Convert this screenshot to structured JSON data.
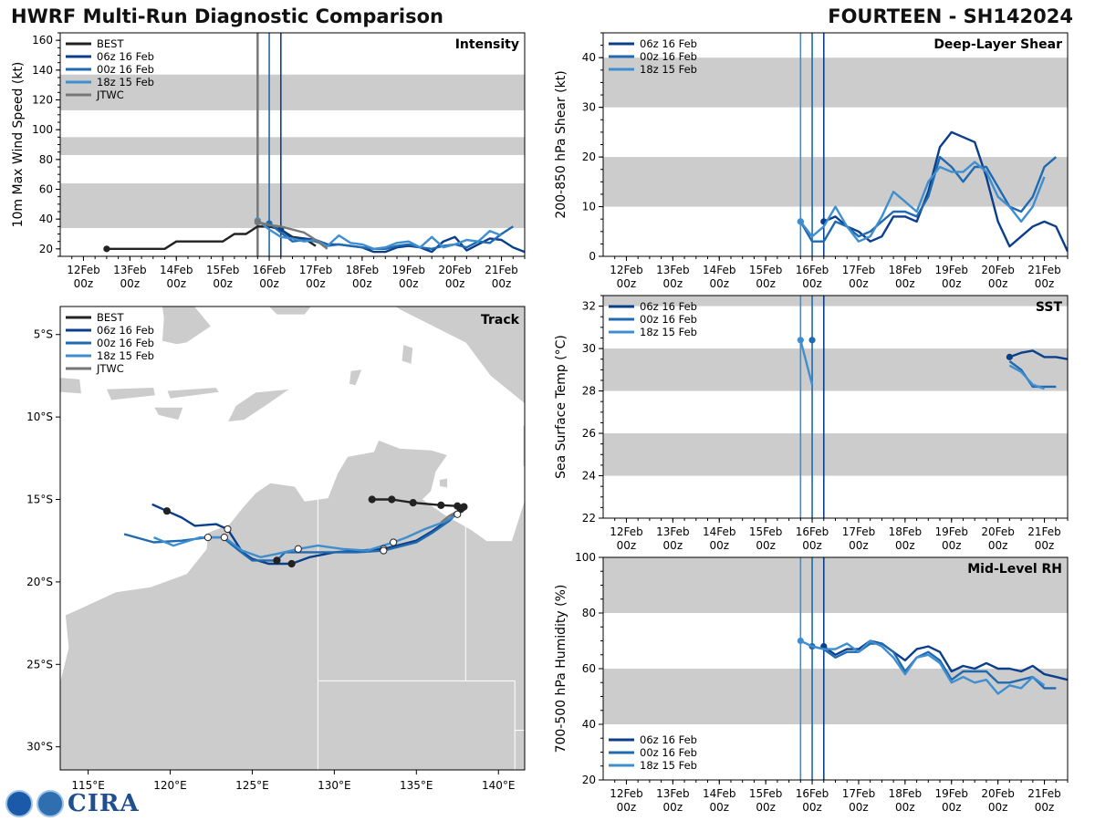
{
  "header": {
    "title_left": "HWRF Multi-Run Diagnostic Comparison",
    "title_right": "FOURTEEN - SH142024"
  },
  "logo": {
    "text": "CIRA"
  },
  "colors": {
    "best": "#222222",
    "run06": "#0b3f8c",
    "run00": "#1f6ab0",
    "run18": "#3f8fd0",
    "jtwc": "#777777",
    "band": "#cccccc",
    "land": "#cccccc",
    "ocean": "#ffffff"
  },
  "time_axis": {
    "tick_day": [
      12,
      13,
      14,
      15,
      16,
      17,
      18,
      19,
      20,
      21
    ],
    "tick_labels": [
      "12Feb",
      "13Feb",
      "14Feb",
      "15Feb",
      "16Feb",
      "17Feb",
      "18Feb",
      "19Feb",
      "20Feb",
      "21Feb"
    ],
    "tick_sub": "00z",
    "xlim": [
      11.5,
      21.5
    ]
  },
  "chart_data": [
    {
      "id": "intensity",
      "type": "line",
      "title": "Intensity",
      "ylabel": "10m Max Wind Speed (kt)",
      "ylim": [
        15,
        165
      ],
      "yticks": [
        20,
        40,
        60,
        80,
        100,
        120,
        140,
        160
      ],
      "bands": [
        [
          34,
          64
        ],
        [
          83,
          95
        ],
        [
          113,
          137
        ]
      ],
      "vlines": [
        {
          "x": 15.75,
          "series": "run18"
        },
        {
          "x": 16.0,
          "series": "run00"
        },
        {
          "x": 16.25,
          "series": "run06"
        },
        {
          "x": 15.75,
          "series": "jtwc"
        }
      ],
      "legend": [
        "BEST",
        "06z 16 Feb",
        "00z 16 Feb",
        "18z 15 Feb",
        "JTWC"
      ],
      "series": [
        {
          "name": "BEST",
          "key": "best",
          "x": [
            12.5,
            12.75,
            13,
            13.25,
            13.5,
            13.75,
            14,
            14.25,
            14.5,
            14.75,
            15,
            15.25,
            15.5,
            15.75,
            16,
            16.25,
            16.5,
            16.75,
            17
          ],
          "y": [
            20,
            20,
            20,
            20,
            20,
            20,
            25,
            25,
            25,
            25,
            25,
            30,
            30,
            35,
            35,
            33,
            28,
            27,
            22
          ]
        },
        {
          "name": "06z 16 Feb",
          "key": "run06",
          "x": [
            16.25,
            16.5,
            16.75,
            17,
            17.25,
            17.5,
            17.75,
            18,
            18.25,
            18.5,
            18.75,
            19,
            19.25,
            19.5,
            19.75,
            20,
            20.25,
            20.5,
            20.75,
            21,
            21.25,
            21.5
          ],
          "y": [
            33,
            27,
            27,
            26,
            23,
            23,
            22,
            21,
            18,
            18,
            21,
            22,
            21,
            18,
            25,
            28,
            19,
            23,
            27,
            26,
            21,
            18
          ]
        },
        {
          "name": "00z 16 Feb",
          "key": "run00",
          "x": [
            16,
            16.25,
            16.5,
            16.75,
            17,
            17.25,
            17.5,
            17.75,
            18,
            18.25,
            18.5,
            18.75,
            19,
            19.25,
            19.5,
            19.75,
            20,
            20.25,
            20.5,
            20.75,
            21,
            21.25
          ],
          "y": [
            37,
            31,
            25,
            26,
            25,
            22,
            23,
            22,
            21,
            20,
            20,
            22,
            23,
            21,
            20,
            22,
            23,
            21,
            25,
            24,
            30,
            35
          ]
        },
        {
          "name": "18z 15 Feb",
          "key": "run18",
          "x": [
            15.75,
            16,
            16.25,
            16.5,
            16.75,
            17,
            17.25,
            17.5,
            17.75,
            18,
            18.25,
            18.5,
            18.75,
            19,
            19.25,
            19.5,
            19.75,
            20,
            20.25,
            20.5,
            20.75,
            21
          ],
          "y": [
            39,
            33,
            28,
            27,
            25,
            26,
            22,
            29,
            24,
            23,
            20,
            21,
            24,
            25,
            21,
            28,
            21,
            23,
            26,
            25,
            32,
            29
          ]
        },
        {
          "name": "JTWC",
          "key": "jtwc",
          "x": [
            15.75,
            16,
            16.25,
            16.5,
            16.75,
            17,
            17.25
          ],
          "y": [
            38,
            36,
            35,
            33,
            31,
            26,
            20
          ]
        }
      ]
    },
    {
      "id": "shear",
      "type": "line",
      "title": "Deep-Layer Shear",
      "ylabel": "200-850 hPa Shear (kt)",
      "ylim": [
        0,
        45
      ],
      "yticks": [
        0,
        10,
        20,
        30,
        40
      ],
      "bands": [
        [
          10,
          20
        ],
        [
          30,
          40
        ]
      ],
      "vlines": [
        {
          "x": 15.75,
          "series": "run18"
        },
        {
          "x": 16.0,
          "series": "run00"
        },
        {
          "x": 16.25,
          "series": "run06"
        }
      ],
      "legend": [
        "06z 16 Feb",
        "00z 16 Feb",
        "18z 15 Feb"
      ],
      "series": [
        {
          "name": "06z 16 Feb",
          "key": "run06",
          "x": [
            16.25,
            16.5,
            16.75,
            17,
            17.25,
            17.5,
            17.75,
            18,
            18.25,
            18.5,
            18.75,
            19,
            19.25,
            19.5,
            19.75,
            20,
            20.25,
            20.5,
            20.75,
            21,
            21.25,
            21.5
          ],
          "y": [
            7,
            8,
            6,
            5,
            3,
            4,
            8,
            8,
            7,
            13,
            22,
            25,
            24,
            23,
            16,
            7,
            2,
            4,
            6,
            7,
            6,
            1
          ]
        },
        {
          "name": "00z 16 Feb",
          "key": "run00",
          "x": [
            15.75,
            16,
            16.25,
            16.5,
            16.75,
            17,
            17.25,
            17.5,
            17.75,
            18,
            18.25,
            18.5,
            18.75,
            19,
            19.25,
            19.5,
            19.75,
            20,
            20.25,
            20.5,
            20.75,
            21,
            21.25
          ],
          "y": [
            7,
            3,
            3,
            7,
            6,
            4,
            5,
            7,
            9,
            9,
            8,
            12,
            20,
            18,
            15,
            18,
            18,
            14,
            10,
            9,
            12,
            18,
            20
          ]
        },
        {
          "name": "18z 15 Feb",
          "key": "run18",
          "x": [
            15.75,
            16,
            16.25,
            16.5,
            16.75,
            17,
            17.25,
            17.5,
            17.75,
            18,
            18.25,
            18.5,
            18.75,
            19,
            19.25,
            19.5,
            19.75,
            20,
            20.25,
            20.5,
            20.75,
            21
          ],
          "y": [
            7,
            4,
            6,
            10,
            6,
            3,
            4,
            8,
            13,
            11,
            9,
            15,
            18,
            17,
            17,
            19,
            17,
            12,
            10,
            7,
            10,
            16
          ]
        }
      ]
    },
    {
      "id": "sst",
      "type": "line",
      "title": "SST",
      "ylabel": "Sea Surface Temp (°C)",
      "ylim": [
        22,
        32.5
      ],
      "yticks": [
        22,
        24,
        26,
        28,
        30,
        32
      ],
      "bands": [
        [
          24,
          26
        ],
        [
          28,
          30
        ],
        [
          32,
          34
        ]
      ],
      "vlines": [
        {
          "x": 15.75,
          "series": "run18"
        },
        {
          "x": 16.0,
          "series": "run00"
        },
        {
          "x": 16.25,
          "series": "run06"
        }
      ],
      "legend": [
        "06z 16 Feb",
        "00z 16 Feb",
        "18z 15 Feb"
      ],
      "series": [
        {
          "name": "06z 16 Feb",
          "key": "run06",
          "segments": [
            {
              "x": [
                20.25,
                20.5,
                20.75,
                21,
                21.25,
                21.5
              ],
              "y": [
                29.6,
                29.8,
                29.9,
                29.6,
                29.6,
                29.5
              ]
            }
          ]
        },
        {
          "name": "00z 16 Feb",
          "key": "run00",
          "segments": [
            {
              "x": [
                16.0
              ],
              "y": [
                30.4
              ]
            },
            {
              "x": [
                20.25,
                20.5,
                20.75,
                21,
                21.25
              ],
              "y": [
                29.4,
                29.0,
                28.2,
                28.2,
                28.2
              ]
            }
          ]
        },
        {
          "name": "18z 15 Feb",
          "key": "run18",
          "segments": [
            {
              "x": [
                15.75,
                16.0
              ],
              "y": [
                30.4,
                28.3
              ]
            },
            {
              "x": [
                20.25,
                20.5,
                20.75,
                21
              ],
              "y": [
                29.2,
                28.9,
                28.3,
                28.1
              ]
            }
          ]
        }
      ]
    },
    {
      "id": "rh",
      "type": "line",
      "title": "Mid-Level RH",
      "ylabel": "700-500 hPa Humidity (%)",
      "ylim": [
        20,
        100
      ],
      "yticks": [
        20,
        40,
        60,
        80,
        100
      ],
      "bands": [
        [
          40,
          60
        ],
        [
          80,
          100
        ]
      ],
      "vlines": [
        {
          "x": 15.75,
          "series": "run18"
        },
        {
          "x": 16.0,
          "series": "run00"
        },
        {
          "x": 16.25,
          "series": "run06"
        }
      ],
      "legend": [
        "06z 16 Feb",
        "00z 16 Feb",
        "18z 15 Feb"
      ],
      "series": [
        {
          "name": "06z 16 Feb",
          "key": "run06",
          "x": [
            16.25,
            16.5,
            16.75,
            17,
            17.25,
            17.5,
            17.75,
            18,
            18.25,
            18.5,
            18.75,
            19,
            19.25,
            19.5,
            19.75,
            20,
            20.25,
            20.5,
            20.75,
            21,
            21.25,
            21.5
          ],
          "y": [
            68,
            65,
            67,
            67,
            70,
            69,
            66,
            63,
            67,
            68,
            66,
            59,
            61,
            60,
            62,
            60,
            60,
            59,
            61,
            58,
            57,
            56
          ]
        },
        {
          "name": "00z 16 Feb",
          "key": "run00",
          "x": [
            16,
            16.25,
            16.5,
            16.75,
            17,
            17.25,
            17.5,
            17.75,
            18,
            18.25,
            18.5,
            18.75,
            19,
            19.25,
            19.5,
            19.75,
            20,
            20.25,
            20.5,
            20.75,
            21,
            21.25
          ],
          "y": [
            68,
            67,
            64,
            66,
            66,
            69,
            69,
            66,
            59,
            64,
            66,
            63,
            56,
            59,
            59,
            59,
            55,
            55,
            56,
            57,
            53,
            53
          ]
        },
        {
          "name": "18z 15 Feb",
          "key": "run18",
          "x": [
            15.75,
            16,
            16.25,
            16.5,
            16.75,
            17,
            17.25,
            17.5,
            17.75,
            18,
            18.25,
            18.5,
            18.75,
            19,
            19.25,
            19.5,
            19.75,
            20,
            20.25,
            20.5,
            20.75,
            21
          ],
          "y": [
            70,
            68,
            67,
            67,
            69,
            66,
            70,
            68,
            64,
            58,
            64,
            65,
            62,
            55,
            57,
            55,
            56,
            51,
            54,
            53,
            57,
            54
          ]
        }
      ]
    },
    {
      "id": "track",
      "type": "scatter",
      "title": "Track",
      "xlim": [
        113.3,
        141.6
      ],
      "ylim": [
        -31.4,
        -3.3
      ],
      "xticks": [
        115,
        120,
        125,
        130,
        135,
        140
      ],
      "xtick_labels": [
        "115°E",
        "120°E",
        "125°E",
        "130°E",
        "135°E",
        "140°E"
      ],
      "yticks": [
        -5,
        -10,
        -15,
        -20,
        -25,
        -30
      ],
      "ytick_labels": [
        "5°S",
        "10°S",
        "15°S",
        "20°S",
        "25°S",
        "30°S"
      ],
      "legend": [
        "BEST",
        "06z 16 Feb",
        "00z 16 Feb",
        "18z 15 Feb",
        "JTWC"
      ],
      "series": [
        {
          "name": "BEST",
          "key": "best",
          "lon": [
            132.3,
            133.5,
            134.8,
            136.5,
            137.5,
            137.9
          ],
          "lat": [
            -15.0,
            -15.0,
            -15.2,
            -15.35,
            -15.4,
            -15.45
          ],
          "marker": "filled"
        },
        {
          "name": "06z 16 Feb",
          "key": "run06",
          "lon": [
            137.8,
            137.0,
            136.0,
            135.0,
            133.0,
            131.5,
            130.0,
            128.5,
            127.4,
            126.0,
            125.0,
            124.4,
            123.5,
            122.8,
            121.5,
            120.7,
            119.8,
            118.9
          ],
          "lat": [
            -15.5,
            -16.2,
            -16.9,
            -17.5,
            -18.0,
            -18.1,
            -18.2,
            -18.5,
            -18.9,
            -18.9,
            -18.6,
            -18.2,
            -16.8,
            -16.5,
            -16.6,
            -16.1,
            -15.7,
            -15.3
          ],
          "marker": "filled"
        },
        {
          "name": "00z 16 Feb",
          "key": "run00",
          "lon": [
            137.7,
            137.0,
            136.0,
            135.0,
            133.0,
            131.4,
            129.0,
            127.0,
            126.5,
            125.0,
            124.2,
            123.2,
            122.3,
            120.7,
            119.0,
            117.2
          ],
          "lat": [
            -15.6,
            -16.3,
            -17.0,
            -17.6,
            -18.1,
            -18.2,
            -18.2,
            -18.2,
            -18.7,
            -18.7,
            -18.1,
            -17.3,
            -17.3,
            -17.5,
            -17.6,
            -17.1
          ],
          "marker": "filled"
        },
        {
          "name": "18z 15 Feb",
          "key": "run18",
          "lon": [
            137.5,
            136.6,
            135.5,
            134.4,
            133.6,
            132.0,
            130.5,
            129.0,
            127.8,
            126.5,
            125.5,
            124.4,
            123.3,
            121.8,
            120.2,
            119.0
          ],
          "lat": [
            -15.9,
            -16.4,
            -16.8,
            -17.3,
            -17.6,
            -18.1,
            -18.0,
            -17.8,
            -18.0,
            -18.3,
            -18.5,
            -18.1,
            -17.3,
            -17.3,
            -17.8,
            -17.3
          ],
          "marker": "open"
        },
        {
          "name": "JTWC",
          "key": "jtwc",
          "lon": [
            137.9,
            137.0,
            136.5
          ],
          "lat": [
            -15.5,
            -16.0,
            -16.4
          ],
          "marker": "none"
        }
      ]
    }
  ]
}
